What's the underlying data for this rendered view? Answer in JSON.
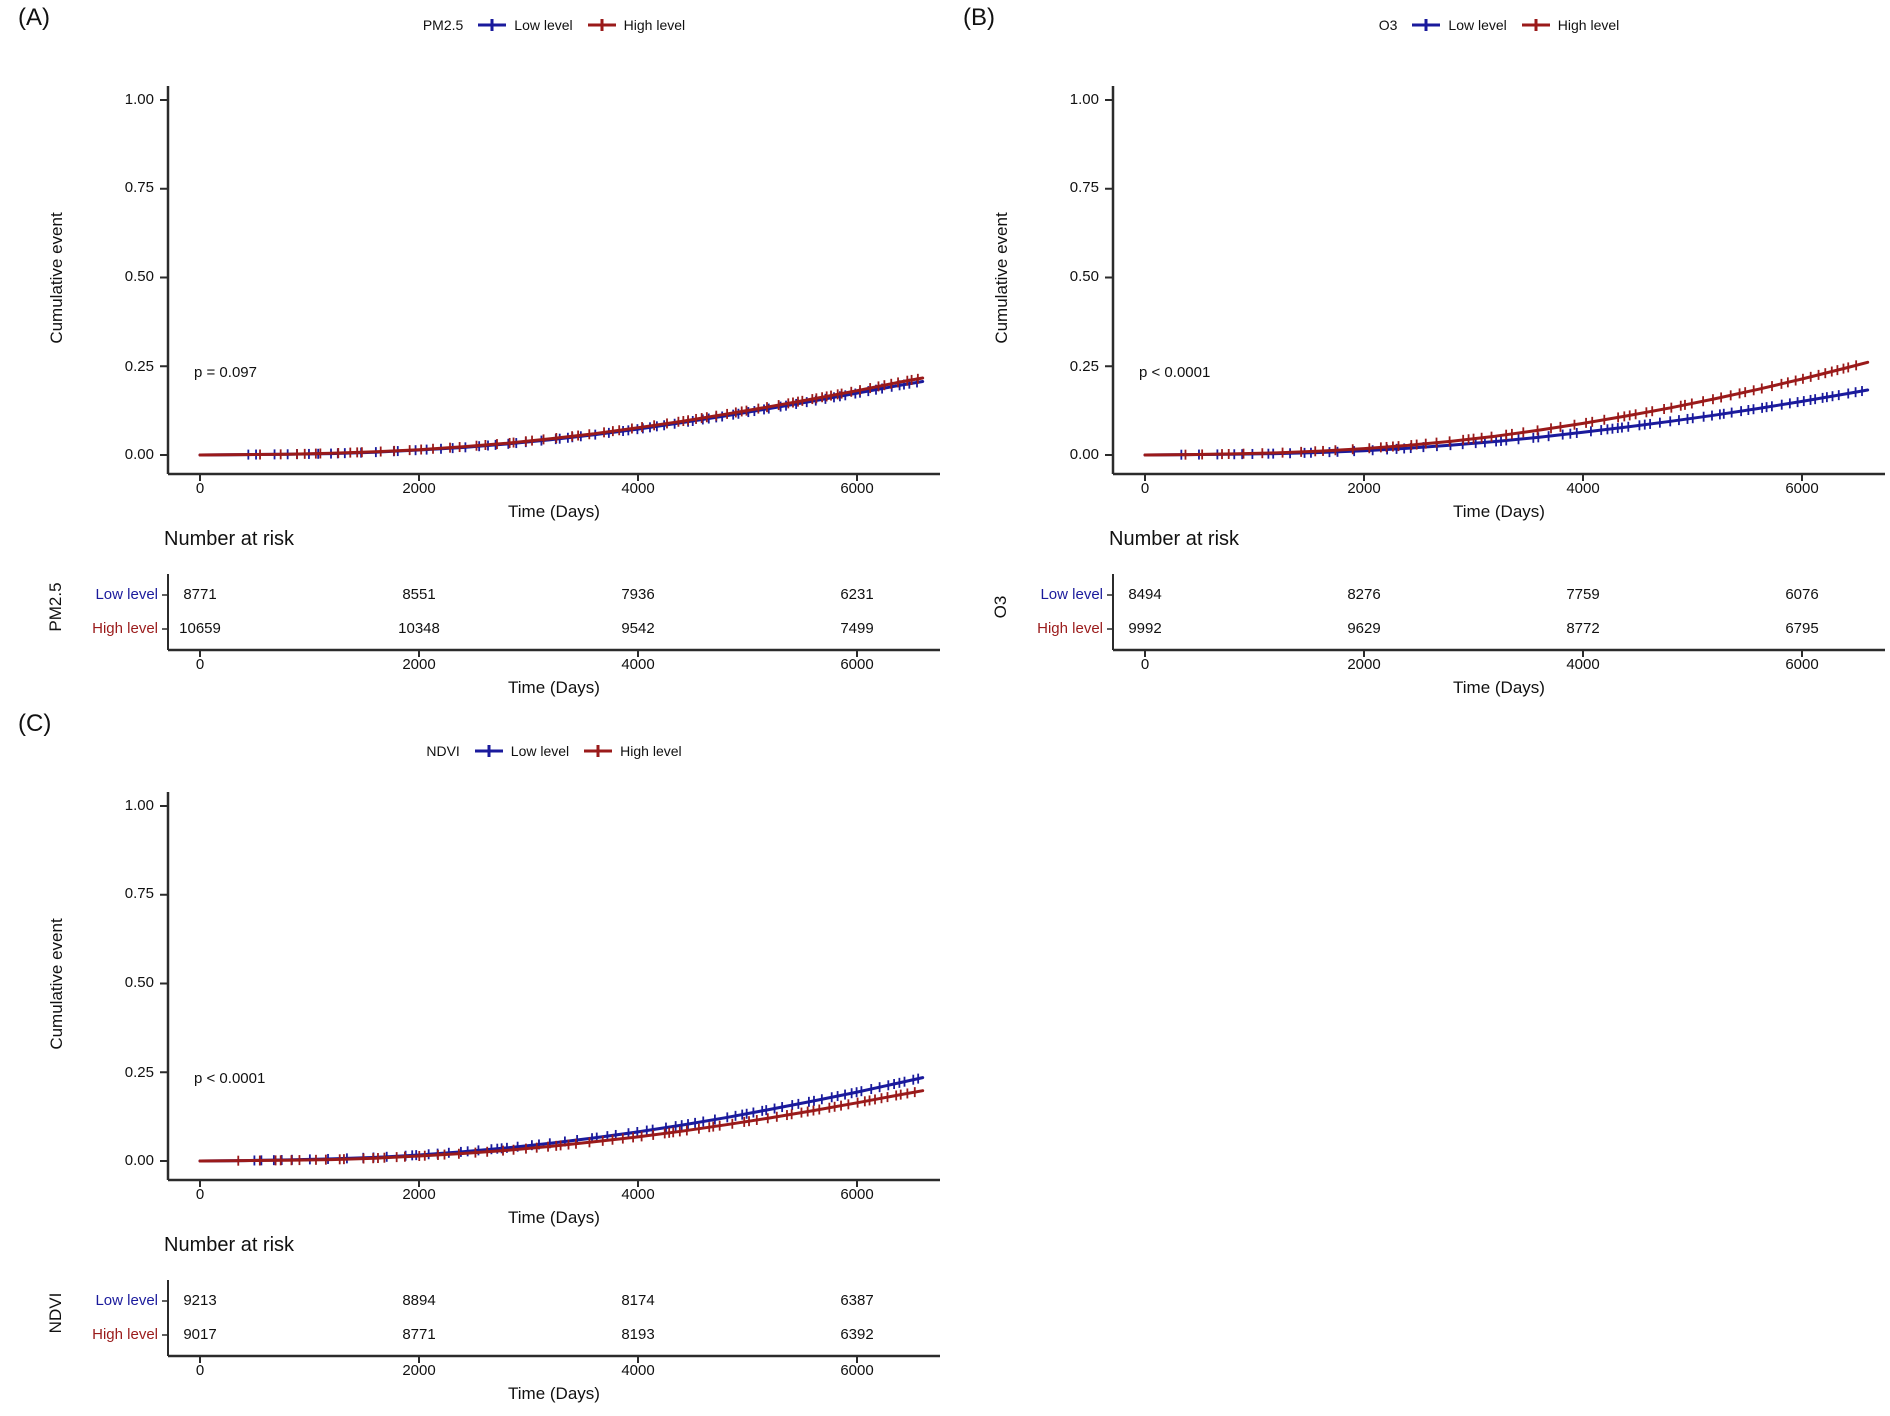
{
  "colors": {
    "low_level": "#1a1a9c",
    "high_level": "#9a1a1a",
    "axis": "#2b2b2b",
    "text": "#111111"
  },
  "chart_data": [
    {
      "type": "line",
      "panel_label": "(A)",
      "exposure": "PM2.5",
      "p_value": "p = 0.097",
      "xlabel": "Time (Days)",
      "ylabel": "Cumulative event",
      "xlim": [
        0,
        6800
      ],
      "ylim": [
        0,
        1.0
      ],
      "x_ticks": [
        0,
        2000,
        4000,
        6000
      ],
      "x_tick_labels": [
        "0",
        "2000",
        "4000",
        "6000"
      ],
      "y_ticks": [
        1.0,
        0.75,
        0.5,
        0.25,
        0.0
      ],
      "y_tick_labels": [
        "1.00",
        "0.75",
        "0.50",
        "0.25",
        "0.00"
      ],
      "legend_position": "top",
      "grid": false,
      "x": [
        0,
        400,
        800,
        1200,
        1600,
        2000,
        2400,
        2800,
        3200,
        3600,
        4000,
        4400,
        4800,
        5200,
        5600,
        6000,
        6400,
        6600
      ],
      "series": [
        {
          "name": "Low level",
          "color": "#1a1a9c",
          "values": [
            0,
            0.001,
            0.002,
            0.004,
            0.008,
            0.014,
            0.021,
            0.031,
            0.043,
            0.057,
            0.073,
            0.091,
            0.11,
            0.131,
            0.152,
            0.174,
            0.197,
            0.207
          ]
        },
        {
          "name": "High level",
          "color": "#9a1a1a",
          "values": [
            0,
            0.001,
            0.002,
            0.005,
            0.009,
            0.015,
            0.023,
            0.033,
            0.046,
            0.06,
            0.077,
            0.095,
            0.115,
            0.136,
            0.158,
            0.181,
            0.206,
            0.217
          ]
        }
      ],
      "risk_table": {
        "title": "Number at risk",
        "group": "PM2.5",
        "times": [
          0,
          2000,
          4000,
          6000
        ],
        "rows": [
          {
            "name": "Low level",
            "values": [
              8771,
              8551,
              7936,
              6231
            ]
          },
          {
            "name": "High level",
            "values": [
              10659,
              10348,
              9542,
              7499
            ]
          }
        ]
      }
    },
    {
      "type": "line",
      "panel_label": "(B)",
      "exposure": "O3",
      "p_value": "p < 0.0001",
      "xlabel": "Time (Days)",
      "ylabel": "Cumulative event",
      "xlim": [
        0,
        6800
      ],
      "ylim": [
        0,
        1.0
      ],
      "x_ticks": [
        0,
        2000,
        4000,
        6000
      ],
      "x_tick_labels": [
        "0",
        "2000",
        "4000",
        "6000"
      ],
      "y_ticks": [
        1.0,
        0.75,
        0.5,
        0.25,
        0.0
      ],
      "y_tick_labels": [
        "1.00",
        "0.75",
        "0.50",
        "0.25",
        "0.00"
      ],
      "legend_position": "top",
      "grid": false,
      "x": [
        0,
        400,
        800,
        1200,
        1600,
        2000,
        2400,
        2800,
        3200,
        3600,
        4000,
        4400,
        4800,
        5200,
        5600,
        6000,
        6400,
        6600
      ],
      "series": [
        {
          "name": "Low level",
          "color": "#1a1a9c",
          "values": [
            0,
            0.001,
            0.002,
            0.004,
            0.007,
            0.012,
            0.019,
            0.028,
            0.038,
            0.05,
            0.064,
            0.079,
            0.095,
            0.112,
            0.131,
            0.151,
            0.172,
            0.183
          ]
        },
        {
          "name": "High level",
          "color": "#9a1a1a",
          "values": [
            0,
            0.001,
            0.003,
            0.006,
            0.011,
            0.018,
            0.027,
            0.039,
            0.053,
            0.07,
            0.089,
            0.11,
            0.133,
            0.158,
            0.185,
            0.214,
            0.245,
            0.261
          ]
        }
      ],
      "risk_table": {
        "title": "Number at risk",
        "group": "O3",
        "times": [
          0,
          2000,
          4000,
          6000
        ],
        "rows": [
          {
            "name": "Low level",
            "values": [
              8494,
              8276,
              7759,
              6076
            ]
          },
          {
            "name": "High level",
            "values": [
              9992,
              9629,
              8772,
              6795
            ]
          }
        ]
      }
    },
    {
      "type": "line",
      "panel_label": "(C)",
      "exposure": "NDVI",
      "p_value": "p < 0.0001",
      "xlabel": "Time (Days)",
      "ylabel": "Cumulative event",
      "xlim": [
        0,
        6800
      ],
      "ylim": [
        0,
        1.0
      ],
      "x_ticks": [
        0,
        2000,
        4000,
        6000
      ],
      "x_tick_labels": [
        "0",
        "2000",
        "4000",
        "6000"
      ],
      "y_ticks": [
        1.0,
        0.75,
        0.5,
        0.25,
        0.0
      ],
      "y_tick_labels": [
        "1.00",
        "0.75",
        "0.50",
        "0.25",
        "0.00"
      ],
      "legend_position": "top",
      "grid": false,
      "x": [
        0,
        400,
        800,
        1200,
        1600,
        2000,
        2400,
        2800,
        3200,
        3600,
        4000,
        4400,
        4800,
        5200,
        5600,
        6000,
        6400,
        6600
      ],
      "series": [
        {
          "name": "Low level",
          "color": "#1a1a9c",
          "values": [
            0,
            0.001,
            0.003,
            0.006,
            0.01,
            0.017,
            0.026,
            0.037,
            0.05,
            0.065,
            0.082,
            0.101,
            0.122,
            0.145,
            0.169,
            0.194,
            0.221,
            0.235
          ]
        },
        {
          "name": "High level",
          "color": "#9a1a1a",
          "values": [
            0,
            0.001,
            0.002,
            0.004,
            0.008,
            0.014,
            0.021,
            0.03,
            0.041,
            0.054,
            0.068,
            0.084,
            0.102,
            0.121,
            0.142,
            0.164,
            0.187,
            0.198
          ]
        }
      ],
      "risk_table": {
        "title": "Number at risk",
        "group": "NDVI",
        "times": [
          0,
          2000,
          4000,
          6000
        ],
        "rows": [
          {
            "name": "Low level",
            "values": [
              9213,
              8894,
              8174,
              6387
            ]
          },
          {
            "name": "High level",
            "values": [
              9017,
              8771,
              8193,
              6392
            ]
          }
        ]
      }
    }
  ]
}
